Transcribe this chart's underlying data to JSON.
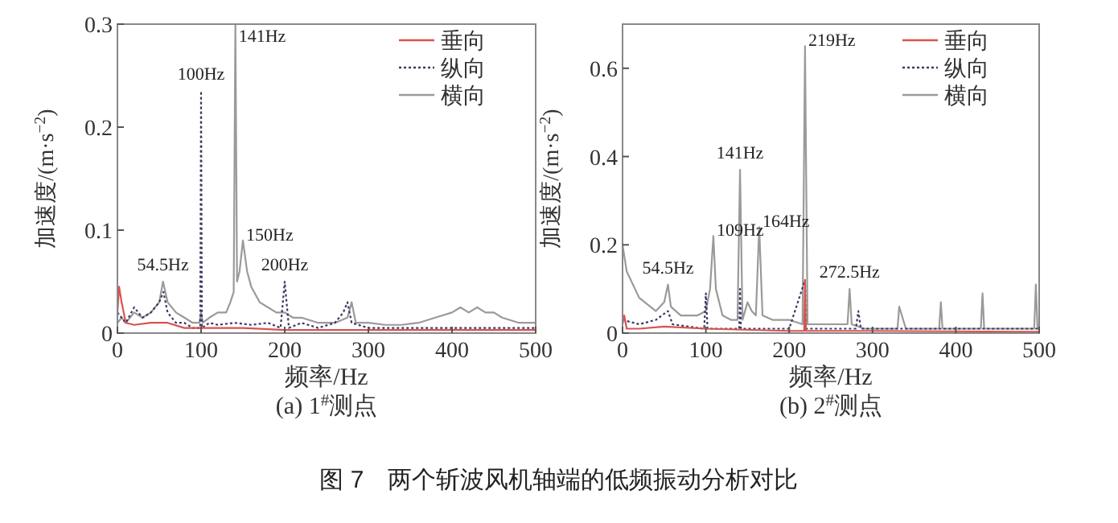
{
  "chart_data": [
    {
      "type": "line",
      "title": "(a) 1$^{#}$测点",
      "xlabel": "频率/Hz",
      "ylabel": "加速度/(m·s$^{−2}$)",
      "xlim": [
        0,
        500
      ],
      "ylim": [
        0,
        0.3
      ],
      "xticks": [
        0,
        100,
        200,
        300,
        400,
        500
      ],
      "yticks": [
        0,
        0.1,
        0.2,
        0.3
      ],
      "legend": "top right",
      "series": [
        {
          "name": "垂向",
          "color": "#d9534f",
          "line_style": "solid",
          "x": [
            0,
            2,
            5,
            10,
            20,
            40,
            60,
            80,
            100,
            150,
            200,
            300,
            400,
            500
          ],
          "values": [
            0.02,
            0.045,
            0.03,
            0.01,
            0.008,
            0.01,
            0.01,
            0.005,
            0.005,
            0.005,
            0.003,
            0.003,
            0.003,
            0.003
          ]
        },
        {
          "name": "纵向",
          "color": "#3a3a66",
          "line_style": "dotted",
          "x": [
            0,
            10,
            20,
            30,
            40,
            50,
            55,
            60,
            70,
            80,
            90,
            99,
            100,
            101,
            110,
            120,
            140,
            160,
            180,
            195,
            200,
            205,
            220,
            240,
            260,
            270,
            275,
            280,
            300,
            350,
            400,
            450,
            500
          ],
          "values": [
            0.02,
            0.01,
            0.025,
            0.015,
            0.02,
            0.03,
            0.04,
            0.02,
            0.01,
            0.01,
            0.005,
            0.005,
            0.235,
            0.005,
            0.01,
            0.008,
            0.01,
            0.008,
            0.01,
            0.005,
            0.05,
            0.005,
            0.01,
            0.005,
            0.01,
            0.02,
            0.03,
            0.01,
            0.005,
            0.005,
            0.005,
            0.005,
            0.005
          ]
        },
        {
          "name": "横向",
          "color": "#9a9a9a",
          "line_style": "solid",
          "x": [
            0,
            5,
            10,
            20,
            30,
            40,
            50,
            54.5,
            60,
            70,
            80,
            90,
            98,
            100,
            102,
            110,
            120,
            130,
            135,
            139,
            141,
            143,
            146,
            150,
            155,
            160,
            170,
            180,
            190,
            200,
            210,
            220,
            240,
            260,
            275,
            280,
            285,
            300,
            320,
            340,
            360,
            380,
            400,
            410,
            420,
            430,
            440,
            450,
            460,
            480,
            500
          ],
          "values": [
            0.01,
            0.015,
            0.01,
            0.02,
            0.015,
            0.02,
            0.03,
            0.05,
            0.03,
            0.02,
            0.015,
            0.01,
            0.01,
            0.02,
            0.01,
            0.015,
            0.02,
            0.02,
            0.03,
            0.04,
            0.3,
            0.05,
            0.06,
            0.09,
            0.06,
            0.045,
            0.03,
            0.025,
            0.02,
            0.02,
            0.015,
            0.015,
            0.01,
            0.01,
            0.015,
            0.03,
            0.01,
            0.01,
            0.008,
            0.008,
            0.01,
            0.015,
            0.02,
            0.025,
            0.02,
            0.025,
            0.02,
            0.02,
            0.015,
            0.01,
            0.01
          ]
        }
      ],
      "annotations": [
        {
          "text": "54.5Hz",
          "x": 54.5,
          "y": 0.05
        },
        {
          "text": "100Hz",
          "x": 100,
          "y": 0.235
        },
        {
          "text": "141Hz",
          "x": 141,
          "y": 0.3
        },
        {
          "text": "150Hz",
          "x": 150,
          "y": 0.09
        },
        {
          "text": "200Hz",
          "x": 200,
          "y": 0.05
        },
        "图 7　两个斩波风机轴端的低频振动分析对比"
      ]
    },
    {
      "type": "line",
      "title": "(b) 2$^{#}$测点",
      "xlabel": "频率/Hz",
      "ylabel": "加速度/(m·s$^{−2}$)",
      "xlim": [
        0,
        500
      ],
      "ylim": [
        0,
        0.7
      ],
      "xticks": [
        0,
        100,
        200,
        300,
        400,
        500
      ],
      "yticks": [
        0,
        0.2,
        0.4,
        0.6
      ],
      "legend": "top right",
      "series": [
        {
          "name": "垂向",
          "color": "#d9534f",
          "line_style": "solid",
          "x": [
            0,
            2,
            5,
            20,
            50,
            100,
            200,
            218,
            219,
            220,
            300,
            500
          ],
          "values": [
            0.02,
            0.04,
            0.01,
            0.01,
            0.015,
            0.01,
            0.005,
            0.005,
            0.12,
            0.005,
            0.005,
            0.003
          ]
        },
        {
          "name": "纵向",
          "color": "#3a3a66",
          "line_style": "dotted",
          "x": [
            0,
            20,
            40,
            54.5,
            60,
            98,
            100,
            102,
            140,
            141,
            142,
            200,
            219,
            220,
            240,
            280,
            283,
            286,
            300,
            400,
            500
          ],
          "values": [
            0.03,
            0.02,
            0.03,
            0.05,
            0.02,
            0.01,
            0.09,
            0.01,
            0.01,
            0.1,
            0.01,
            0.01,
            0.12,
            0.01,
            0.01,
            0.01,
            0.05,
            0.01,
            0.01,
            0.01,
            0.01
          ]
        },
        {
          "name": "横向",
          "color": "#9a9a9a",
          "line_style": "solid",
          "x": [
            0,
            5,
            20,
            40,
            50,
            54.5,
            58,
            70,
            90,
            100,
            105,
            109,
            112,
            120,
            130,
            138,
            141,
            144,
            150,
            155,
            160,
            164,
            168,
            180,
            200,
            216,
            219,
            222,
            240,
            260,
            270,
            272.5,
            275,
            290,
            320,
            330,
            332,
            340,
            380,
            382,
            384,
            400,
            430,
            432,
            434,
            450,
            480,
            494,
            496,
            498,
            500
          ],
          "values": [
            0.2,
            0.14,
            0.08,
            0.05,
            0.07,
            0.11,
            0.06,
            0.04,
            0.04,
            0.05,
            0.1,
            0.22,
            0.1,
            0.04,
            0.03,
            0.03,
            0.37,
            0.03,
            0.07,
            0.05,
            0.04,
            0.24,
            0.04,
            0.03,
            0.03,
            0.02,
            0.65,
            0.02,
            0.02,
            0.02,
            0.02,
            0.1,
            0.02,
            0.01,
            0.01,
            0.01,
            0.06,
            0.01,
            0.01,
            0.07,
            0.01,
            0.01,
            0.01,
            0.09,
            0.01,
            0.01,
            0.01,
            0.01,
            0.11,
            0.01,
            0.01
          ]
        }
      ],
      "annotations": [
        {
          "text": "54.5Hz",
          "x": 54.5,
          "y": 0.11
        },
        {
          "text": "109Hz",
          "x": 109,
          "y": 0.22
        },
        {
          "text": "141Hz",
          "x": 141,
          "y": 0.37
        },
        {
          "text": "164Hz",
          "x": 164,
          "y": 0.24
        },
        {
          "text": "219Hz",
          "x": 219,
          "y": 0.65
        },
        {
          "text": "272.5Hz",
          "x": 272.5,
          "y": 0.1
        }
      ]
    }
  ]
}
